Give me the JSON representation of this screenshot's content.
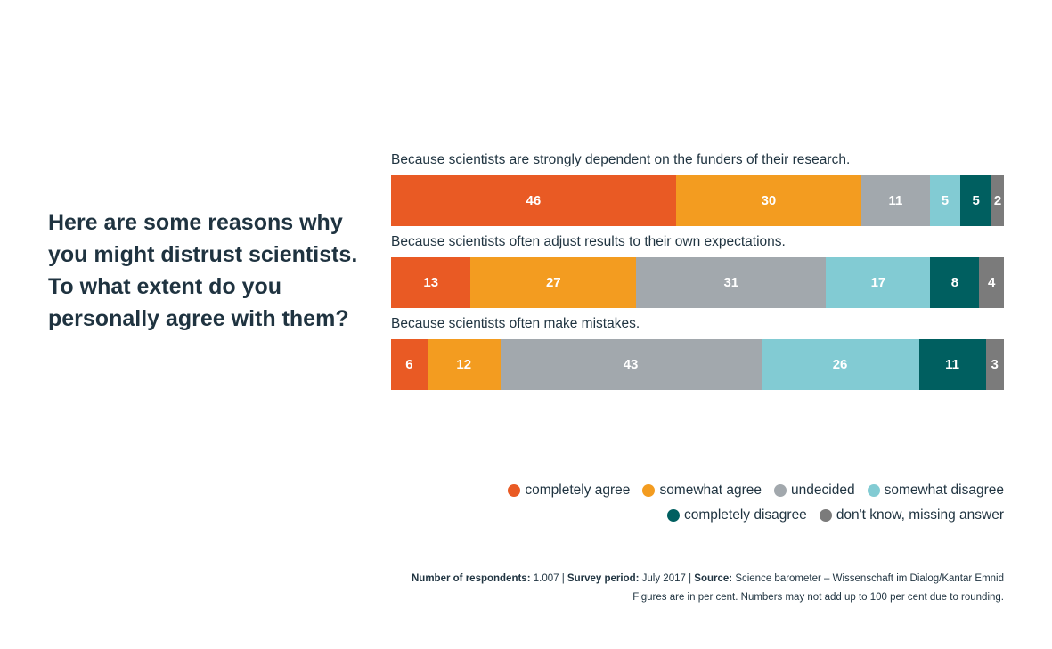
{
  "question_lines": [
    "Here are some reasons why",
    "you might distrust scientists.",
    "To what extent do you",
    "personally agree with them?"
  ],
  "colors": {
    "completely_agree": "#e95a24",
    "somewhat_agree": "#f39c20",
    "undecided": "#a2a8ad",
    "somewhat_disagree": "#82cbd3",
    "completely_disagree": "#005f60",
    "dont_know": "#7b7b7b"
  },
  "chart_data": {
    "type": "bar",
    "orientation": "horizontal",
    "stacked": true,
    "unit": "per cent",
    "categories": [
      "Because scientists are strongly dependent on the funders of their research.",
      "Because scientists often adjust results to their own expectations.",
      "Because scientists often make mistakes."
    ],
    "series": [
      {
        "name": "completely agree",
        "color": "#e95a24",
        "values": [
          46,
          13,
          6
        ]
      },
      {
        "name": "somewhat agree",
        "color": "#f39c20",
        "values": [
          30,
          27,
          12
        ]
      },
      {
        "name": "undecided",
        "color": "#a2a8ad",
        "values": [
          11,
          31,
          43
        ]
      },
      {
        "name": "somewhat disagree",
        "color": "#82cbd3",
        "values": [
          5,
          17,
          26
        ]
      },
      {
        "name": "completely disagree",
        "color": "#005f60",
        "values": [
          5,
          8,
          11
        ]
      },
      {
        "name": "don't know, missing answer",
        "color": "#7b7b7b",
        "values": [
          2,
          4,
          3
        ]
      }
    ],
    "legend_position": "bottom-right",
    "grid": false
  },
  "footer": {
    "respondents_label": "Number of respondents:",
    "respondents_value": "1.007",
    "period_label": "Survey period:",
    "period_value": "July 2017",
    "source_label": "Source:",
    "source_value": "Science barometer – Wissenschaft im Dialog/Kantar Emnid",
    "note": "Figures are in per cent. Numbers may not add up to 100 per cent due to rounding."
  }
}
